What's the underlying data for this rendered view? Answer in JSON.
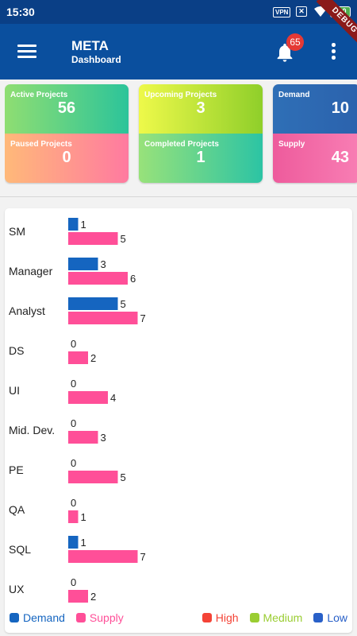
{
  "status_bar": {
    "time": "15:30",
    "vpn": "VPN",
    "battery": "100"
  },
  "app_bar": {
    "title": "META",
    "subtitle": "Dashboard",
    "notification_count": "65"
  },
  "debug_banner": "DEBUG",
  "cards": [
    {
      "top_label": "Active Projects",
      "top_value": "56",
      "bottom_label": "Paused Projects",
      "bottom_value": "0"
    },
    {
      "top_label": "Upcoming Projects",
      "top_value": "3",
      "bottom_label": "Completed Projects",
      "bottom_value": "1"
    },
    {
      "top_label": "Demand",
      "top_value": "10",
      "bottom_label": "Supply",
      "bottom_value": "43"
    }
  ],
  "colors": {
    "demand": "#1565c0",
    "supply": "#ff4f98",
    "high": "#f44336",
    "medium": "#9acd32",
    "low": "#2960c8",
    "app_bar": "#0a4f9e"
  },
  "chart_data": {
    "type": "bar",
    "orientation": "horizontal",
    "categories": [
      "SM",
      "Manager",
      "Analyst",
      "DS",
      "UI",
      "Mid. Dev.",
      "PE",
      "QA",
      "SQL",
      "UX"
    ],
    "series": [
      {
        "name": "Demand",
        "values": [
          1,
          3,
          5,
          0,
          0,
          0,
          0,
          0,
          1,
          0
        ]
      },
      {
        "name": "Supply",
        "values": [
          5,
          6,
          7,
          2,
          4,
          3,
          5,
          1,
          7,
          2
        ]
      }
    ],
    "grid": false
  },
  "legend": {
    "left": [
      {
        "label": "Demand"
      },
      {
        "label": "Supply"
      }
    ],
    "right": [
      {
        "label": "High"
      },
      {
        "label": "Medium"
      },
      {
        "label": "Low"
      }
    ]
  }
}
